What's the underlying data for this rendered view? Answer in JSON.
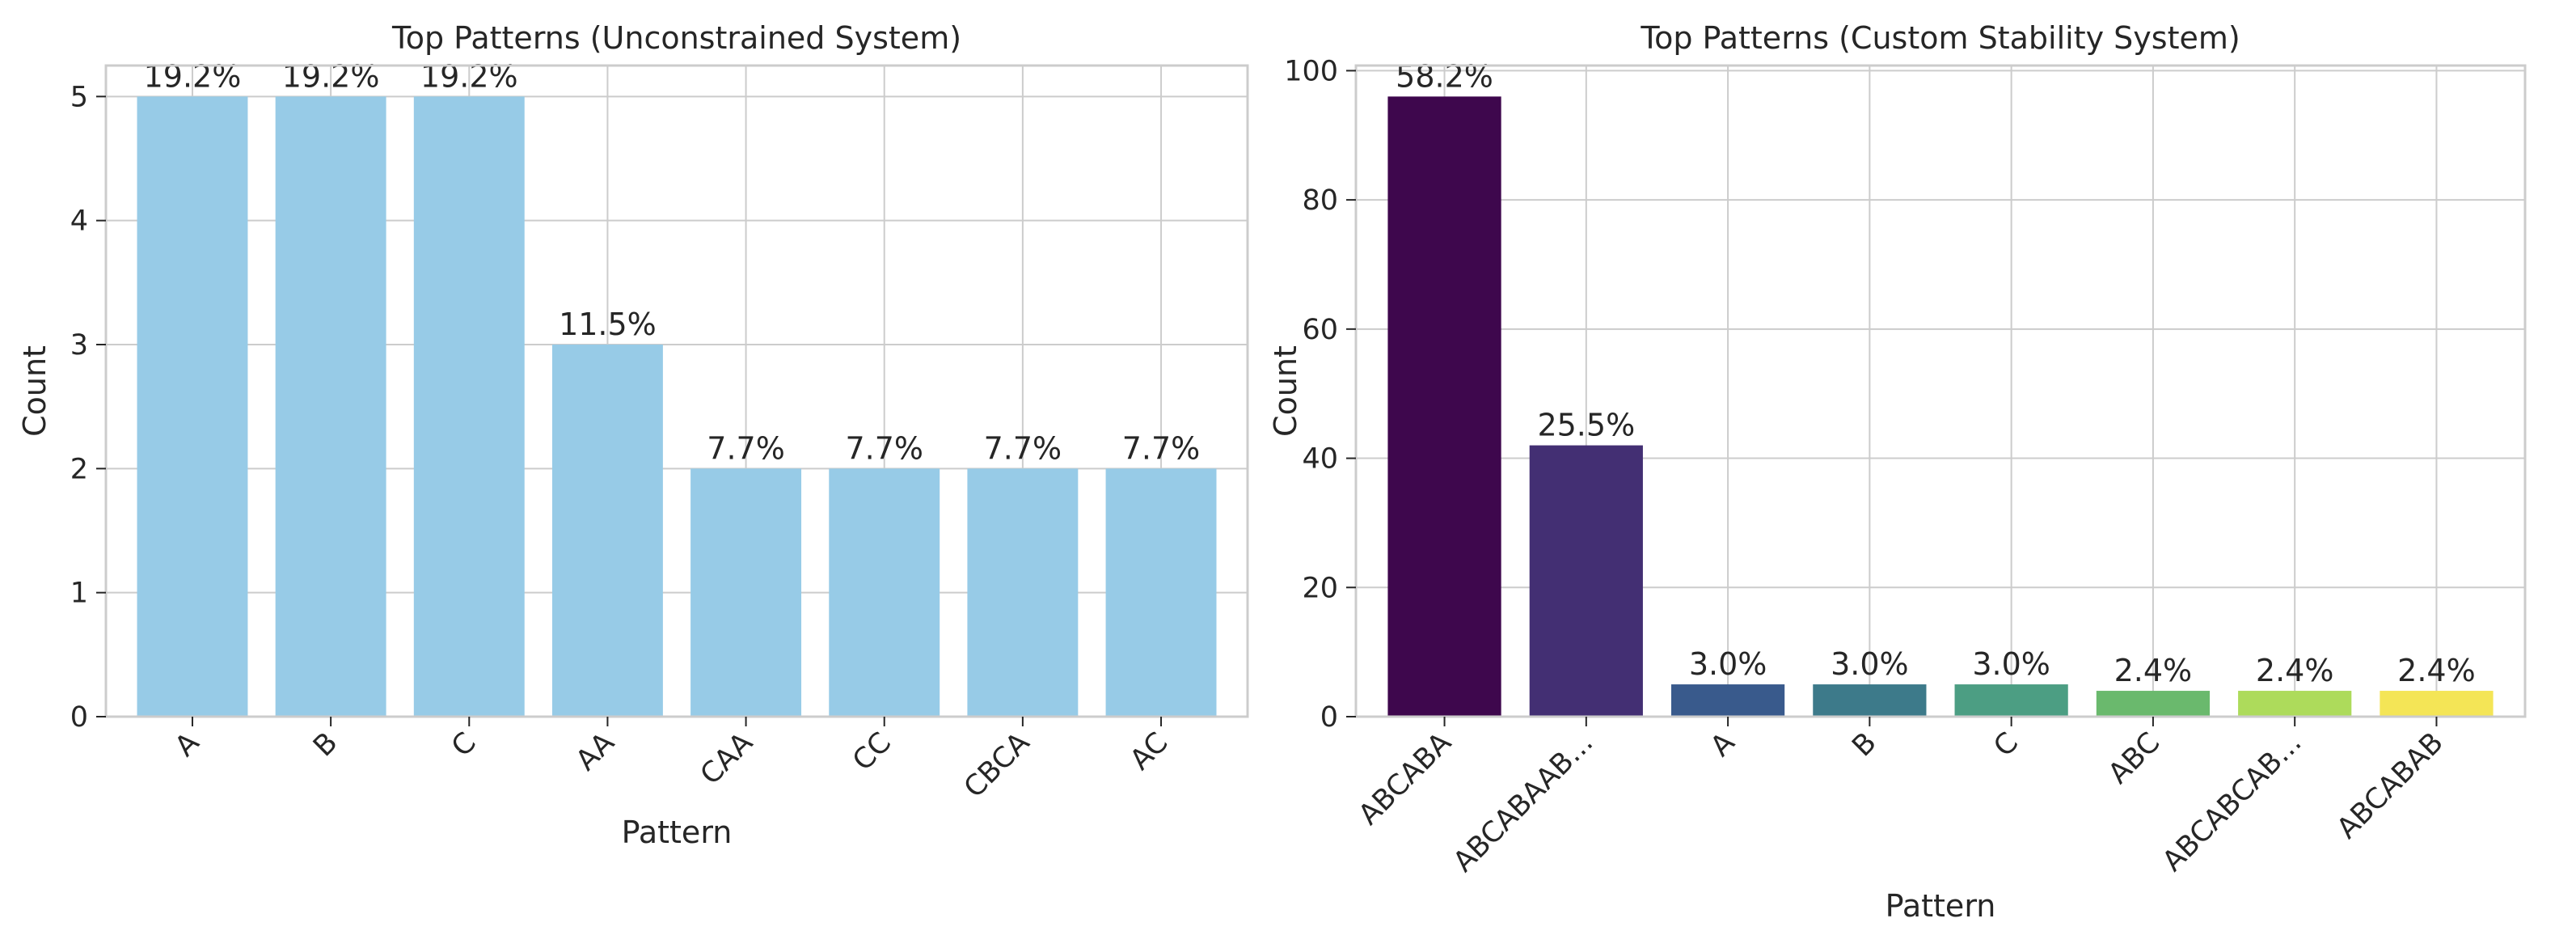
{
  "chart_data": [
    {
      "type": "bar",
      "title": "Top Patterns (Unconstrained System)",
      "xlabel": "Pattern",
      "ylabel": "Count",
      "categories": [
        "A",
        "B",
        "C",
        "AA",
        "CAA",
        "CC",
        "CBCA",
        "AC"
      ],
      "values": [
        5,
        5,
        5,
        3,
        2,
        2,
        2,
        2
      ],
      "data_labels": [
        "19.2%",
        "19.2%",
        "19.2%",
        "11.5%",
        "7.7%",
        "7.7%",
        "7.7%",
        "7.7%"
      ],
      "ylim": [
        0,
        5.25
      ],
      "yticks": [
        0,
        1,
        2,
        3,
        4,
        5
      ],
      "grid": true,
      "bar_colors": [
        "#97cbe7",
        "#97cbe7",
        "#97cbe7",
        "#97cbe7",
        "#97cbe7",
        "#97cbe7",
        "#97cbe7",
        "#97cbe7"
      ]
    },
    {
      "type": "bar",
      "title": "Top Patterns (Custom Stability System)",
      "xlabel": "Pattern",
      "ylabel": "Count",
      "categories": [
        "ABCABA",
        "ABCABAAB...",
        "A",
        "B",
        "C",
        "ABC",
        "ABCABCAB...",
        "ABCABAB"
      ],
      "values": [
        96,
        42,
        5,
        5,
        5,
        4,
        4,
        4
      ],
      "data_labels": [
        "58.2%",
        "25.5%",
        "3.0%",
        "3.0%",
        "3.0%",
        "2.4%",
        "2.4%",
        "2.4%"
      ],
      "ylim": [
        0,
        100.8
      ],
      "yticks": [
        0,
        20,
        40,
        60,
        80,
        100
      ],
      "grid": true,
      "bar_colors": [
        "#3e074d",
        "#432f73",
        "#395a8c",
        "#3d7a8a",
        "#4c9e83",
        "#6ab96d",
        "#addb5b",
        "#f4e556"
      ]
    }
  ]
}
